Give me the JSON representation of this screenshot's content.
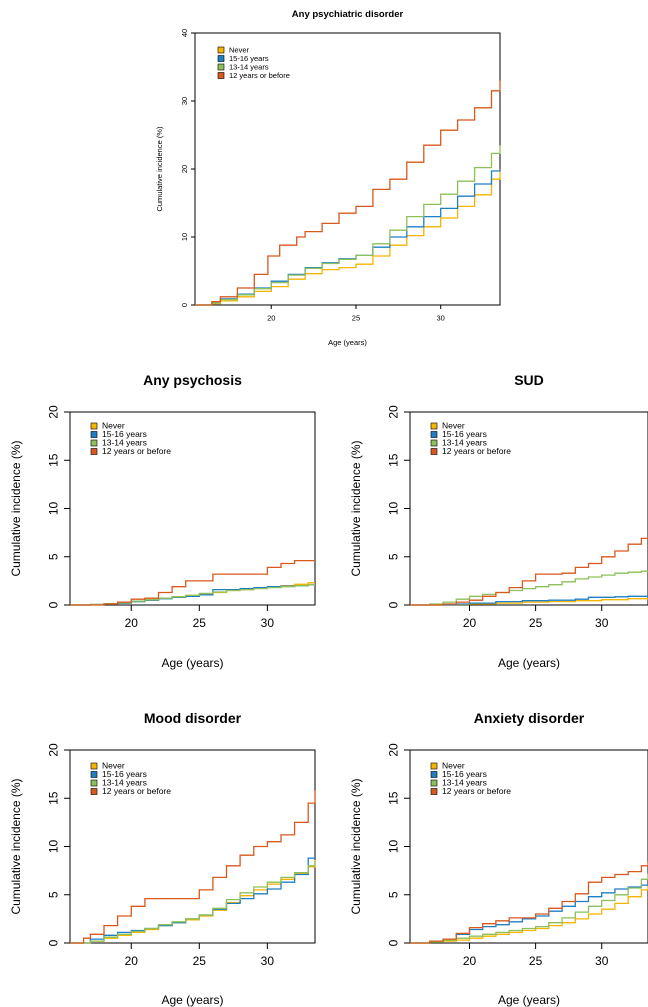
{
  "colors": {
    "Never": "#F5B400",
    "15-16 years": "#1F7FC4",
    "13-14 years": "#8DC05A",
    "12 years or before": "#D9581C",
    "axis": "#000000"
  },
  "chart_data": [
    {
      "id": "any",
      "type": "line",
      "title": "Any psychiatric disorder",
      "xlabel": "Age (years)",
      "ylabel": "Cumulative incidence (%)",
      "xlim": [
        15.5,
        33.5
      ],
      "ylim": [
        0,
        40
      ],
      "xticks": [
        20,
        25,
        30
      ],
      "yticks": [
        0,
        10,
        20,
        30,
        40
      ],
      "legend_position": "top-left",
      "series": [
        {
          "name": "Never",
          "x": [
            15.5,
            16.5,
            17,
            18,
            19,
            20,
            21,
            22,
            23,
            24,
            25,
            26,
            27,
            28,
            29,
            30,
            31,
            32,
            33,
            33.5
          ],
          "y": [
            0,
            0.2,
            0.6,
            1.2,
            2,
            2.7,
            3.8,
            4.6,
            5.2,
            5.5,
            6,
            7.2,
            8.8,
            10.2,
            11.5,
            12.8,
            14.5,
            16.2,
            18.5,
            20
          ]
        },
        {
          "name": "15-16 years",
          "x": [
            15.5,
            16.5,
            17,
            18,
            19,
            20,
            21,
            22,
            23,
            24,
            25,
            26,
            27,
            28,
            29,
            30,
            31,
            32,
            33,
            33.5
          ],
          "y": [
            0,
            0.4,
            0.9,
            1.6,
            2.5,
            3.5,
            4.5,
            5.5,
            6.2,
            6.8,
            7.3,
            8.5,
            10,
            11.5,
            13,
            14.2,
            16,
            17.8,
            19.7,
            20
          ]
        },
        {
          "name": "13-14 years",
          "x": [
            15.5,
            16.5,
            17,
            18,
            19,
            20,
            21,
            22,
            23,
            24,
            25,
            26,
            27,
            28,
            29,
            30,
            31,
            32,
            33,
            33.5
          ],
          "y": [
            0,
            0.3,
            0.8,
            1.5,
            2.4,
            3.3,
            4.4,
            5.4,
            6.1,
            6.7,
            7.3,
            9,
            11,
            13,
            14.8,
            16.3,
            18.2,
            20.2,
            22.3,
            23.5
          ]
        },
        {
          "name": "12 years or before",
          "x": [
            15.5,
            16.5,
            17,
            18,
            19,
            19.8,
            20.5,
            21.5,
            22,
            23,
            24,
            25,
            26,
            27,
            28,
            29,
            30,
            31,
            32,
            33,
            33.5
          ],
          "y": [
            0,
            0.5,
            1.2,
            2.5,
            4.5,
            7.2,
            8.8,
            10,
            10.8,
            12,
            13.5,
            14.5,
            17,
            18.5,
            21,
            23.5,
            25.7,
            27.2,
            29,
            31.5,
            33
          ]
        }
      ]
    },
    {
      "id": "psychosis",
      "type": "line",
      "title": "Any psychosis",
      "xlabel": "Age (years)",
      "ylabel": "Cumulative incidence (%)",
      "xlim": [
        15.5,
        33.5
      ],
      "ylim": [
        0,
        20
      ],
      "xticks": [
        20,
        25,
        30
      ],
      "yticks": [
        0,
        5,
        10,
        15,
        20
      ],
      "legend_position": "top-left",
      "series": [
        {
          "name": "Never",
          "x": [
            15.5,
            17,
            18,
            19,
            20,
            21,
            22,
            23,
            24,
            25,
            26,
            27,
            28,
            29,
            30,
            31,
            32,
            33,
            33.5
          ],
          "y": [
            0,
            0.05,
            0.1,
            0.2,
            0.35,
            0.5,
            0.7,
            0.85,
            1,
            1.1,
            1.3,
            1.5,
            1.6,
            1.75,
            1.9,
            2,
            2.15,
            2.3,
            2.3
          ]
        },
        {
          "name": "15-16 years",
          "x": [
            15.5,
            17,
            18,
            19,
            20,
            21,
            22,
            23,
            24,
            25,
            26,
            27,
            28,
            29,
            30,
            31,
            32,
            33,
            33.5
          ],
          "y": [
            0,
            0.05,
            0.1,
            0.2,
            0.35,
            0.5,
            0.65,
            0.8,
            0.9,
            1.05,
            1.6,
            1.6,
            1.7,
            1.8,
            1.9,
            1.95,
            2,
            2.1,
            2.1
          ]
        },
        {
          "name": "13-14 years",
          "x": [
            15.5,
            17,
            18,
            19,
            20,
            21,
            22,
            23,
            24,
            25,
            26,
            27,
            28,
            29,
            30,
            31,
            32,
            33,
            33.5
          ],
          "y": [
            0,
            0.05,
            0.15,
            0.25,
            0.4,
            0.55,
            0.7,
            0.85,
            1,
            1.2,
            1.35,
            1.5,
            1.6,
            1.7,
            1.8,
            1.9,
            2,
            2.1,
            2.1
          ]
        },
        {
          "name": "12 years or before",
          "x": [
            15.5,
            17,
            18,
            19,
            20,
            21,
            22,
            23,
            24,
            25,
            26,
            27,
            28,
            29,
            30,
            31,
            32,
            33,
            33.5
          ],
          "y": [
            0,
            0,
            0.1,
            0.3,
            0.6,
            0.7,
            1.3,
            1.9,
            2.5,
            2.5,
            3.2,
            3.2,
            3.2,
            3.2,
            3.9,
            4.3,
            4.6,
            4.6,
            4.6
          ]
        }
      ]
    },
    {
      "id": "sud",
      "type": "line",
      "title": "SUD",
      "xlabel": "Age (years)",
      "ylabel": "Cumulative incidence (%)",
      "xlim": [
        15.5,
        33.5
      ],
      "ylim": [
        0,
        20
      ],
      "xticks": [
        20,
        25,
        30
      ],
      "yticks": [
        0,
        5,
        10,
        15,
        20
      ],
      "legend_position": "top-left",
      "series": [
        {
          "name": "Never",
          "x": [
            15.5,
            18,
            20,
            22,
            24,
            26,
            28,
            30,
            32,
            33.5
          ],
          "y": [
            0,
            0.05,
            0.1,
            0.2,
            0.3,
            0.35,
            0.45,
            0.55,
            0.65,
            0.7
          ]
        },
        {
          "name": "15-16 years",
          "x": [
            15.5,
            18,
            19,
            20,
            22,
            24,
            26,
            28,
            29,
            30,
            31,
            32,
            33.5
          ],
          "y": [
            0,
            0.05,
            0.1,
            0.2,
            0.35,
            0.45,
            0.5,
            0.6,
            0.8,
            0.8,
            0.85,
            0.9,
            0.9
          ]
        },
        {
          "name": "13-14 years",
          "x": [
            15.5,
            17,
            18,
            19,
            20,
            21,
            22,
            23,
            24,
            25,
            26,
            27,
            28,
            29,
            30,
            31,
            32,
            33,
            33.5
          ],
          "y": [
            0,
            0.1,
            0.3,
            0.6,
            0.9,
            1.1,
            1.3,
            1.5,
            1.7,
            1.9,
            2.1,
            2.4,
            2.7,
            2.9,
            3.1,
            3.3,
            3.4,
            3.5,
            3.5
          ]
        },
        {
          "name": "12 years or before",
          "x": [
            15.5,
            18,
            19,
            20,
            21,
            22,
            23,
            24,
            25,
            26,
            27,
            28,
            29,
            30,
            31,
            32,
            33,
            33.5
          ],
          "y": [
            0,
            0.1,
            0.3,
            0.5,
            0.9,
            1.3,
            1.8,
            2.5,
            3.2,
            3.2,
            3.3,
            3.9,
            4.3,
            5,
            5.6,
            6.3,
            6.9,
            6.9
          ]
        }
      ]
    },
    {
      "id": "mood",
      "type": "line",
      "title": "Mood disorder",
      "xlabel": "Age (years)",
      "ylabel": "Cumulative incidence (%)",
      "xlim": [
        15.5,
        33.5
      ],
      "ylim": [
        0,
        20
      ],
      "xticks": [
        20,
        25,
        30
      ],
      "yticks": [
        0,
        5,
        10,
        15,
        20
      ],
      "legend_position": "top-left",
      "series": [
        {
          "name": "Never",
          "x": [
            15.5,
            17,
            18,
            19,
            20,
            21,
            22,
            23,
            24,
            25,
            26,
            27,
            28,
            29,
            30,
            31,
            32,
            33,
            33.5
          ],
          "y": [
            0,
            0.2,
            0.5,
            0.8,
            1.1,
            1.4,
            1.8,
            2.1,
            2.4,
            2.8,
            3.4,
            4.2,
            4.9,
            5.5,
            6.1,
            6.6,
            7.2,
            7.9,
            8.6
          ]
        },
        {
          "name": "15-16 years",
          "x": [
            15.5,
            17,
            18,
            19,
            20,
            21,
            22,
            23,
            24,
            25,
            26,
            27,
            28,
            29,
            30,
            31,
            32,
            33,
            33.5
          ],
          "y": [
            0,
            0.4,
            0.8,
            1.1,
            1.3,
            1.5,
            1.8,
            2.1,
            2.5,
            2.9,
            3.5,
            4.1,
            4.6,
            5.1,
            5.6,
            6.3,
            7.1,
            8.8,
            8.8
          ]
        },
        {
          "name": "13-14 years",
          "x": [
            15.5,
            17,
            18,
            19,
            20,
            21,
            22,
            23,
            24,
            25,
            26,
            27,
            28,
            29,
            30,
            31,
            32,
            33,
            33.5
          ],
          "y": [
            0,
            0.2,
            0.6,
            0.9,
            1.2,
            1.5,
            1.9,
            2.2,
            2.5,
            2.9,
            3.6,
            4.5,
            5.2,
            5.8,
            6.3,
            6.8,
            7.3,
            8,
            8.5
          ]
        },
        {
          "name": "12 years or before",
          "x": [
            15.5,
            16.5,
            17,
            18,
            19,
            20,
            21,
            22,
            23,
            24,
            25,
            26,
            27,
            28,
            29,
            30,
            31,
            32,
            33,
            33.5
          ],
          "y": [
            0,
            0.5,
            0.9,
            1.8,
            2.8,
            3.8,
            4.6,
            4.6,
            4.6,
            4.6,
            5.5,
            6.8,
            8,
            9.1,
            10,
            10.5,
            11.2,
            12.5,
            14.5,
            15.8
          ]
        }
      ]
    },
    {
      "id": "anxiety",
      "type": "line",
      "title": "Anxiety disorder",
      "xlabel": "Age (years)",
      "ylabel": "Cumulative incidence (%)",
      "xlim": [
        15.5,
        33.5
      ],
      "ylim": [
        0,
        20
      ],
      "xticks": [
        20,
        25,
        30
      ],
      "yticks": [
        0,
        5,
        10,
        15,
        20
      ],
      "legend_position": "top-left",
      "series": [
        {
          "name": "Never",
          "x": [
            15.5,
            17,
            18,
            19,
            20,
            21,
            22,
            23,
            24,
            25,
            26,
            27,
            28,
            29,
            30,
            31,
            32,
            33,
            33.5
          ],
          "y": [
            0,
            0.1,
            0.2,
            0.3,
            0.5,
            0.7,
            0.9,
            1.1,
            1.3,
            1.5,
            1.8,
            2.1,
            2.5,
            3,
            3.5,
            4.1,
            4.8,
            5.5,
            5.9
          ]
        },
        {
          "name": "15-16 years",
          "x": [
            15.5,
            17,
            18,
            19,
            20,
            21,
            22,
            23,
            24,
            25,
            26,
            27,
            28,
            29,
            30,
            31,
            32,
            33,
            33.5
          ],
          "y": [
            0,
            0.2,
            0.4,
            0.9,
            1.4,
            1.7,
            1.9,
            2.2,
            2.5,
            2.8,
            3.3,
            3.8,
            4.3,
            4.8,
            5.2,
            5.6,
            5.8,
            6,
            6.1
          ]
        },
        {
          "name": "13-14 years",
          "x": [
            15.5,
            17,
            18,
            19,
            20,
            21,
            22,
            23,
            24,
            25,
            26,
            27,
            28,
            29,
            30,
            31,
            32,
            33,
            33.5
          ],
          "y": [
            0,
            0.1,
            0.3,
            0.5,
            0.7,
            0.9,
            1.1,
            1.3,
            1.5,
            1.7,
            2.1,
            2.6,
            3.2,
            3.8,
            4.4,
            5,
            5.7,
            6.6,
            7.2
          ]
        },
        {
          "name": "12 years or before",
          "x": [
            15.5,
            17,
            18,
            19,
            20,
            21,
            22,
            23,
            24,
            25,
            26,
            27,
            28,
            29,
            30,
            31,
            32,
            33,
            33.5
          ],
          "y": [
            0,
            0.2,
            0.4,
            1,
            1.6,
            2,
            2.3,
            2.6,
            2.6,
            3,
            3.6,
            4.3,
            5.1,
            6.3,
            6.8,
            7.1,
            7.4,
            8,
            8.4
          ]
        }
      ]
    }
  ]
}
